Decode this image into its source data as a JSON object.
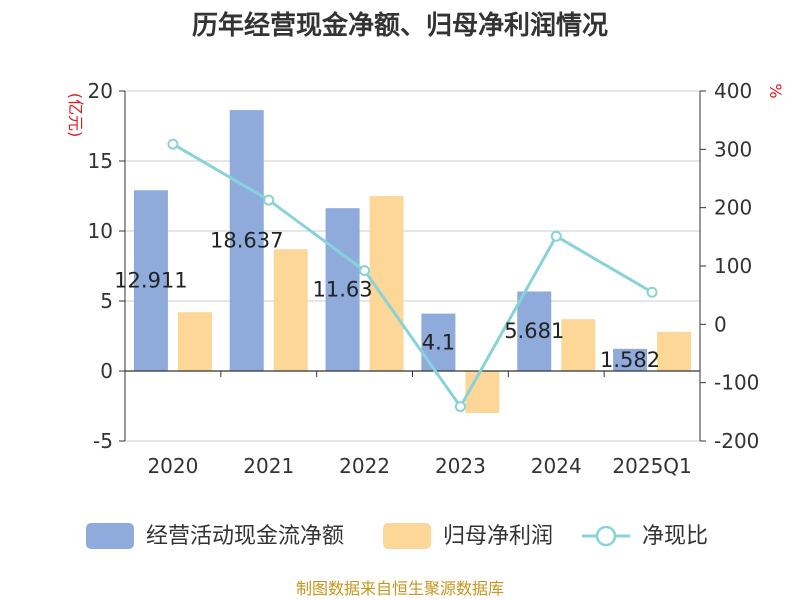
{
  "title": "历年经营现金净额、归母净利润情况",
  "source": "制图数据来自恒生聚源数据库",
  "colors": {
    "cash_flow": "#8eabdb",
    "net_profit": "#fdd797",
    "ratio": "#88d3d9",
    "axis_unit": "#e0191f",
    "source": "#c8961e",
    "grid": "#cccccc"
  },
  "chart_data": {
    "type": "bar",
    "categories": [
      "2020",
      "2021",
      "2022",
      "2023",
      "2024",
      "2025Q1"
    ],
    "left_axis": {
      "unit": "(亿元)",
      "ylim": [
        -5,
        20
      ],
      "ticks": [
        "20",
        "15",
        "10",
        "5",
        "0",
        "-5"
      ]
    },
    "right_axis": {
      "unit": "%",
      "ylim": [
        -200,
        400
      ],
      "ticks": [
        "400",
        "300",
        "200",
        "100",
        "0",
        "-100",
        "-200"
      ]
    },
    "series": [
      {
        "name": "经营活动现金流净额",
        "type": "bar",
        "axis": "left",
        "values": [
          12.911,
          18.637,
          11.63,
          4.1,
          5.681,
          1.582
        ],
        "labels": [
          "12.911",
          "18.637",
          "11.63",
          "4.1",
          "5.681",
          "1.582"
        ]
      },
      {
        "name": "归母净利润",
        "type": "bar",
        "axis": "left",
        "values": [
          4.2,
          8.7,
          12.5,
          -3.0,
          3.7,
          2.8
        ]
      },
      {
        "name": "净现比",
        "type": "line",
        "axis": "right",
        "values": [
          309,
          213,
          92,
          -141,
          151,
          55
        ]
      }
    ],
    "grid": true,
    "legend_position": "bottom"
  }
}
